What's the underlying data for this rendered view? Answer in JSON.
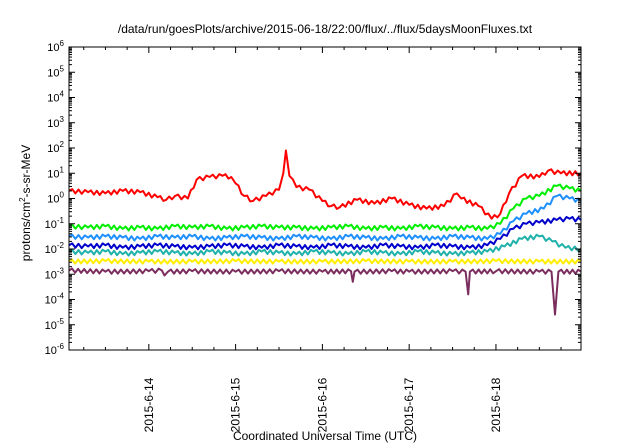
{
  "chart_data": {
    "type": "line",
    "title": "/data/run/goesPlots/archive/2015-06-18/22:00/flux/../flux/5daysMoonFluxes.txt",
    "xlabel": "Coordinated Universal Time (UTC)",
    "ylabel": "protons/cm2-s-sr-MeV",
    "ylabel_parts": {
      "base": "protons/cm",
      "sup": "2",
      "rest": "-s-sr-MeV"
    },
    "yscale": "log",
    "ylim_exp": [
      -6,
      6
    ],
    "xlim_days": [
      13.08,
      18.98
    ],
    "y_tick_exponents": [
      6,
      5,
      4,
      3,
      2,
      1,
      0,
      -1,
      -2,
      -3,
      -4,
      -5,
      -6
    ],
    "x_ticks": [
      {
        "label": "2015-6-14",
        "day": 14
      },
      {
        "label": "2015-6-15",
        "day": 15
      },
      {
        "label": "2015-6-16",
        "day": 16
      },
      {
        "label": "2015-6-17",
        "day": 17
      },
      {
        "label": "2015-6-18",
        "day": 18
      }
    ],
    "grid": false,
    "legend": "none",
    "series": [
      {
        "color": "#ff0000",
        "log_points": [
          [
            13.08,
            0.3
          ],
          [
            13.3,
            0.25
          ],
          [
            13.5,
            0.2
          ],
          [
            13.7,
            0.3
          ],
          [
            13.9,
            0.25
          ],
          [
            14.1,
            0.05
          ],
          [
            14.2,
            -0.05
          ],
          [
            14.3,
            0.1
          ],
          [
            14.45,
            0.0
          ],
          [
            14.55,
            0.75
          ],
          [
            14.7,
            0.85
          ],
          [
            14.85,
            0.9
          ],
          [
            14.95,
            0.85
          ],
          [
            15.0,
            0.6
          ],
          [
            15.1,
            0.1
          ],
          [
            15.2,
            -0.1
          ],
          [
            15.35,
            0.1
          ],
          [
            15.5,
            0.35
          ],
          [
            15.55,
            1.0
          ],
          [
            15.58,
            1.9
          ],
          [
            15.62,
            0.9
          ],
          [
            15.7,
            0.45
          ],
          [
            15.85,
            0.35
          ],
          [
            16.0,
            -0.1
          ],
          [
            16.1,
            -0.3
          ],
          [
            16.2,
            -0.35
          ],
          [
            16.4,
            -0.05
          ],
          [
            16.6,
            -0.2
          ],
          [
            16.8,
            0.0
          ],
          [
            17.0,
            -0.25
          ],
          [
            17.2,
            -0.4
          ],
          [
            17.4,
            -0.3
          ],
          [
            17.55,
            0.2
          ],
          [
            17.6,
            0.0
          ],
          [
            17.8,
            -0.3
          ],
          [
            17.95,
            -0.8
          ],
          [
            18.05,
            -0.6
          ],
          [
            18.15,
            0.2
          ],
          [
            18.3,
            0.9
          ],
          [
            18.5,
            0.85
          ],
          [
            18.6,
            1.1
          ],
          [
            18.75,
            1.0
          ],
          [
            18.98,
            1.0
          ]
        ]
      },
      {
        "color": "#00ee00",
        "log_points": [
          [
            13.08,
            -1.1
          ],
          [
            13.3,
            -1.15
          ],
          [
            13.5,
            -1.1
          ],
          [
            13.7,
            -1.2
          ],
          [
            13.9,
            -1.15
          ],
          [
            14.1,
            -1.2
          ],
          [
            14.3,
            -1.1
          ],
          [
            14.5,
            -1.15
          ],
          [
            14.7,
            -1.1
          ],
          [
            14.9,
            -1.2
          ],
          [
            15.1,
            -1.15
          ],
          [
            15.3,
            -1.1
          ],
          [
            15.5,
            -1.15
          ],
          [
            15.7,
            -1.15
          ],
          [
            15.9,
            -1.2
          ],
          [
            16.1,
            -1.15
          ],
          [
            16.3,
            -1.1
          ],
          [
            16.5,
            -1.2
          ],
          [
            16.7,
            -1.15
          ],
          [
            16.9,
            -1.2
          ],
          [
            17.1,
            -1.1
          ],
          [
            17.3,
            -1.15
          ],
          [
            17.5,
            -1.2
          ],
          [
            17.7,
            -1.15
          ],
          [
            17.9,
            -1.2
          ],
          [
            18.05,
            -1.0
          ],
          [
            18.2,
            -0.4
          ],
          [
            18.35,
            0.0
          ],
          [
            18.5,
            0.1
          ],
          [
            18.7,
            0.5
          ],
          [
            18.85,
            0.4
          ],
          [
            18.98,
            0.3
          ]
        ]
      },
      {
        "color": "#1e90ff",
        "log_points": [
          [
            13.08,
            -1.5
          ],
          [
            13.3,
            -1.55
          ],
          [
            13.5,
            -1.5
          ],
          [
            13.7,
            -1.55
          ],
          [
            13.9,
            -1.6
          ],
          [
            14.1,
            -1.5
          ],
          [
            14.3,
            -1.55
          ],
          [
            14.5,
            -1.5
          ],
          [
            14.7,
            -1.6
          ],
          [
            14.9,
            -1.55
          ],
          [
            15.1,
            -1.5
          ],
          [
            15.3,
            -1.55
          ],
          [
            15.5,
            -1.6
          ],
          [
            15.7,
            -1.5
          ],
          [
            15.9,
            -1.55
          ],
          [
            16.1,
            -1.6
          ],
          [
            16.3,
            -1.5
          ],
          [
            16.5,
            -1.55
          ],
          [
            16.7,
            -1.6
          ],
          [
            16.9,
            -1.5
          ],
          [
            17.1,
            -1.55
          ],
          [
            17.3,
            -1.6
          ],
          [
            17.5,
            -1.5
          ],
          [
            17.7,
            -1.55
          ],
          [
            17.9,
            -1.6
          ],
          [
            18.05,
            -1.4
          ],
          [
            18.2,
            -0.9
          ],
          [
            18.35,
            -0.6
          ],
          [
            18.55,
            -0.4
          ],
          [
            18.7,
            0.1
          ],
          [
            18.85,
            0.0
          ],
          [
            18.98,
            -0.1
          ]
        ]
      },
      {
        "color": "#0000cc",
        "log_points": [
          [
            13.08,
            -1.85
          ],
          [
            13.3,
            -1.9
          ],
          [
            13.5,
            -1.85
          ],
          [
            13.7,
            -1.95
          ],
          [
            13.9,
            -1.9
          ],
          [
            14.1,
            -1.85
          ],
          [
            14.3,
            -1.9
          ],
          [
            14.5,
            -1.95
          ],
          [
            14.7,
            -1.9
          ],
          [
            14.9,
            -1.85
          ],
          [
            15.1,
            -1.9
          ],
          [
            15.3,
            -1.95
          ],
          [
            15.5,
            -1.85
          ],
          [
            15.7,
            -1.9
          ],
          [
            15.9,
            -1.95
          ],
          [
            16.1,
            -1.85
          ],
          [
            16.3,
            -1.9
          ],
          [
            16.5,
            -1.95
          ],
          [
            16.7,
            -1.85
          ],
          [
            16.9,
            -1.9
          ],
          [
            17.1,
            -1.95
          ],
          [
            17.3,
            -1.85
          ],
          [
            17.5,
            -1.9
          ],
          [
            17.7,
            -1.95
          ],
          [
            17.9,
            -1.85
          ],
          [
            18.05,
            -1.6
          ],
          [
            18.2,
            -1.2
          ],
          [
            18.35,
            -1.0
          ],
          [
            18.5,
            -0.95
          ],
          [
            18.7,
            -0.85
          ],
          [
            18.85,
            -0.8
          ],
          [
            18.98,
            -0.85
          ]
        ]
      },
      {
        "color": "#20b2aa",
        "log_points": [
          [
            13.08,
            -2.1
          ],
          [
            13.3,
            -2.15
          ],
          [
            13.5,
            -2.1
          ],
          [
            13.7,
            -2.2
          ],
          [
            13.9,
            -2.15
          ],
          [
            14.1,
            -2.1
          ],
          [
            14.3,
            -2.15
          ],
          [
            14.5,
            -2.2
          ],
          [
            14.7,
            -2.1
          ],
          [
            14.9,
            -2.15
          ],
          [
            15.1,
            -2.2
          ],
          [
            15.3,
            -2.1
          ],
          [
            15.5,
            -2.15
          ],
          [
            15.7,
            -2.2
          ],
          [
            15.9,
            -2.1
          ],
          [
            16.1,
            -2.15
          ],
          [
            16.3,
            -2.2
          ],
          [
            16.5,
            -2.1
          ],
          [
            16.7,
            -2.15
          ],
          [
            16.9,
            -2.2
          ],
          [
            17.1,
            -2.1
          ],
          [
            17.3,
            -2.15
          ],
          [
            17.5,
            -2.2
          ],
          [
            17.7,
            -2.15
          ],
          [
            17.9,
            -2.1
          ],
          [
            18.1,
            -1.9
          ],
          [
            18.3,
            -1.6
          ],
          [
            18.5,
            -1.5
          ],
          [
            18.65,
            -1.7
          ],
          [
            18.8,
            -1.95
          ],
          [
            18.98,
            -2.0
          ]
        ]
      },
      {
        "color": "#ffee00",
        "log_points": [
          [
            13.08,
            -2.5
          ],
          [
            13.5,
            -2.48
          ],
          [
            14.0,
            -2.5
          ],
          [
            14.5,
            -2.5
          ],
          [
            15.0,
            -2.48
          ],
          [
            15.5,
            -2.5
          ],
          [
            16.0,
            -2.5
          ],
          [
            16.5,
            -2.48
          ],
          [
            17.0,
            -2.5
          ],
          [
            17.5,
            -2.5
          ],
          [
            18.0,
            -2.48
          ],
          [
            18.5,
            -2.5
          ],
          [
            18.98,
            -2.5
          ]
        ]
      },
      {
        "color": "#7b2d5e",
        "log_points": [
          [
            13.08,
            -2.85
          ],
          [
            13.5,
            -2.9
          ],
          [
            14.0,
            -2.88
          ],
          [
            14.15,
            -2.85
          ],
          [
            14.18,
            -3.05
          ],
          [
            14.22,
            -2.9
          ],
          [
            14.5,
            -2.88
          ],
          [
            15.0,
            -2.9
          ],
          [
            15.5,
            -2.88
          ],
          [
            16.0,
            -2.9
          ],
          [
            16.33,
            -2.88
          ],
          [
            16.35,
            -3.3
          ],
          [
            16.37,
            -2.9
          ],
          [
            16.8,
            -2.88
          ],
          [
            17.0,
            -2.9
          ],
          [
            17.5,
            -2.88
          ],
          [
            17.65,
            -2.9
          ],
          [
            17.68,
            -3.8
          ],
          [
            17.7,
            -2.9
          ],
          [
            18.0,
            -2.88
          ],
          [
            18.5,
            -2.9
          ],
          [
            18.64,
            -2.9
          ],
          [
            18.68,
            -4.6
          ],
          [
            18.72,
            -2.9
          ],
          [
            18.98,
            -2.9
          ]
        ]
      }
    ]
  }
}
